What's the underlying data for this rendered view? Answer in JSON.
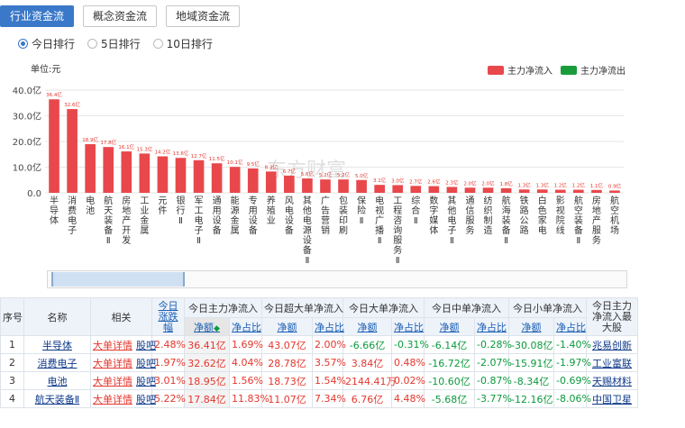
{
  "tabs": [
    {
      "label": "行业资金流",
      "active": true
    },
    {
      "label": "概念资金流",
      "active": false
    },
    {
      "label": "地域资金流",
      "active": false
    }
  ],
  "ranking_options": [
    {
      "label": "今日排行",
      "selected": true
    },
    {
      "label": "5日排行",
      "selected": false
    },
    {
      "label": "10日排行",
      "selected": false
    }
  ],
  "watermark": "东方财富",
  "chart_data": {
    "type": "bar",
    "unit_label": "单位:元",
    "ylim": [
      0,
      40
    ],
    "yticks": [
      "0.0",
      "10.0亿",
      "20.0亿",
      "30.0亿",
      "40.0亿"
    ],
    "legend": [
      {
        "name": "主力净流入",
        "color": "#e8484b"
      },
      {
        "name": "主力净流出",
        "color": "#1a9c3a"
      }
    ],
    "legend_position": "top-right",
    "grid": true,
    "categories": [
      "半导体",
      "消费电子",
      "电池",
      "航天装备Ⅱ",
      "房地产开发",
      "工业金属",
      "元件",
      "银行Ⅱ",
      "军工电子Ⅱ",
      "通用设备",
      "能源金属",
      "专用设备",
      "养殖业",
      "风电设备",
      "其他电源设备Ⅱ",
      "广告营销",
      "包装印刷",
      "保险Ⅱ",
      "电视广播Ⅱ",
      "工程咨询服务Ⅱ",
      "综合Ⅱ",
      "数字媒体",
      "其他电子Ⅱ",
      "通信服务",
      "纺织制造",
      "航海装备Ⅱ",
      "铁路公路",
      "白色家电",
      "影视院线",
      "航空装备Ⅱ",
      "房地产服务",
      "航空机场"
    ],
    "values": [
      36.41,
      32.62,
      18.95,
      17.84,
      16.12,
      15.3,
      14.2,
      13.6,
      12.7,
      11.5,
      10.1,
      9.5,
      8.3,
      6.7,
      5.6,
      5.2,
      5.2,
      5.0,
      3.1,
      3.0,
      2.7,
      2.6,
      2.3,
      2.0,
      2.0,
      1.8,
      1.3,
      1.3,
      1.2,
      1.2,
      1.1,
      0.9
    ],
    "value_labels": [
      "36.4亿",
      "32.6亿",
      "18.9亿",
      "17.8亿",
      "16.1亿",
      "15.3亿",
      "14.2亿",
      "13.6亿",
      "12.7亿",
      "11.5亿",
      "10.1亿",
      "9.5亿",
      "8.3亿",
      "6.7亿",
      "5.6亿",
      "5.2亿",
      "5.2亿",
      "5.0亿",
      "3.1亿",
      "3.0亿",
      "2.7亿",
      "2.6亿",
      "2.3亿",
      "2.0亿",
      "2.0亿",
      "1.8亿",
      "1.3亿",
      "1.3亿",
      "1.2亿",
      "1.2亿",
      "1.1亿",
      "0.9亿"
    ]
  },
  "table": {
    "group_headers": [
      "序号",
      "名称",
      "相关",
      "今日涨跌幅",
      "今日主力净流入",
      "今日超大单净流入",
      "今日大单净流入",
      "今日中单净流入",
      "今日小单净流入",
      "今日主力净流入最大股"
    ],
    "sub_headers": [
      "净额",
      "净占比",
      "净额",
      "净占比",
      "净额",
      "净占比",
      "净额",
      "净占比",
      "净额",
      "净占比"
    ],
    "sort_icon": "sort-down-icon",
    "rows": [
      {
        "no": "1",
        "name": "半导体",
        "rel1": "大单详情",
        "rel2": "股吧",
        "chg": "2.48%",
        "m_amt": "36.41亿",
        "m_pct": "1.69%",
        "xl_amt": "43.07亿",
        "xl_pct": "2.00%",
        "l_amt": "-6.66亿",
        "l_pct": "-0.31%",
        "md_amt": "-6.14亿",
        "md_pct": "-0.28%",
        "s_amt": "-30.08亿",
        "s_pct": "-1.40%",
        "top": "兆易创新"
      },
      {
        "no": "2",
        "name": "消费电子",
        "rel1": "大单详情",
        "rel2": "股吧",
        "chg": "1.97%",
        "m_amt": "32.62亿",
        "m_pct": "4.04%",
        "xl_amt": "28.78亿",
        "xl_pct": "3.57%",
        "l_amt": "3.84亿",
        "l_pct": "0.48%",
        "md_amt": "-16.72亿",
        "md_pct": "-2.07%",
        "s_amt": "-15.91亿",
        "s_pct": "-1.97%",
        "top": "工业富联"
      },
      {
        "no": "3",
        "name": "电池",
        "rel1": "大单详情",
        "rel2": "股吧",
        "chg": "3.01%",
        "m_amt": "18.95亿",
        "m_pct": "1.56%",
        "xl_amt": "18.73亿",
        "xl_pct": "1.54%",
        "l_amt": "2144.41万",
        "l_pct": "0.02%",
        "md_amt": "-10.60亿",
        "md_pct": "-0.87%",
        "s_amt": "-8.34亿",
        "s_pct": "-0.69%",
        "top": "天赐材料"
      },
      {
        "no": "4",
        "name": "航天装备Ⅱ",
        "rel1": "大单详情",
        "rel2": "股吧",
        "chg": "5.22%",
        "m_amt": "17.84亿",
        "m_pct": "11.83%",
        "xl_amt": "11.07亿",
        "xl_pct": "7.34%",
        "l_amt": "6.76亿",
        "l_pct": "4.48%",
        "md_amt": "-5.68亿",
        "md_pct": "-3.77%",
        "s_amt": "-12.16亿",
        "s_pct": "-8.06%",
        "top": "中国卫星"
      }
    ]
  }
}
